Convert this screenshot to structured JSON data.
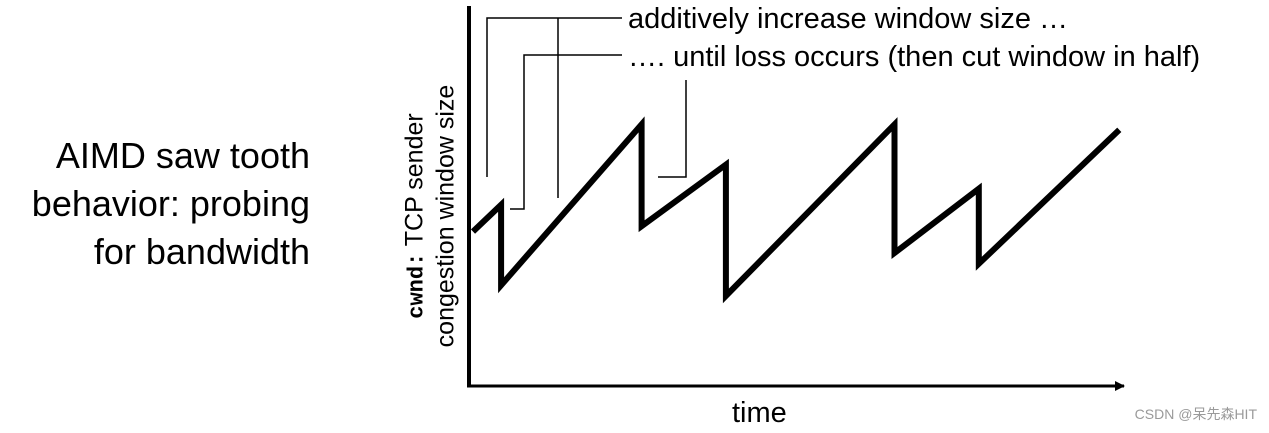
{
  "caption": {
    "line1": "AIMD saw tooth",
    "line2": "behavior: probing",
    "line3": "for bandwidth"
  },
  "y_axis": {
    "var": "cwnd",
    "sep": ":",
    "line1_rest": " TCP sender",
    "line2": "congestion window size"
  },
  "x_axis": {
    "label": "time"
  },
  "annotations": {
    "increase": "additively increase window size …",
    "loss": "…. until loss occurs (then cut window in half)"
  },
  "sawtooth": [
    [
      0,
      3.0
    ],
    [
      1,
      4.0
    ],
    [
      1,
      1.0
    ],
    [
      6,
      7.0
    ],
    [
      6,
      3.2
    ],
    [
      9,
      5.5
    ],
    [
      9,
      0.6
    ],
    [
      15,
      7.0
    ],
    [
      15,
      2.2
    ],
    [
      18,
      4.6
    ],
    [
      18,
      1.8
    ],
    [
      23,
      6.8
    ]
  ],
  "watermark": "CSDN @呆先森HIT",
  "colors": {
    "ink": "#000000",
    "watermark": "#9a9a9a"
  }
}
